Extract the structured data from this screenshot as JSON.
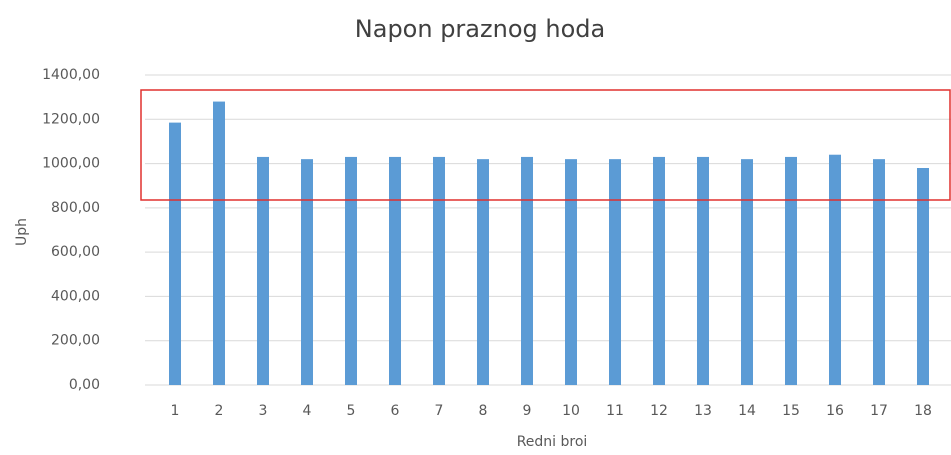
{
  "chart_data": {
    "type": "bar",
    "title": "Napon praznog hoda",
    "x_label": "Redni broi",
    "y_label": "Uph",
    "categories": [
      "1",
      "2",
      "3",
      "4",
      "5",
      "6",
      "7",
      "8",
      "9",
      "10",
      "11",
      "12",
      "13",
      "14",
      "15",
      "16",
      "17",
      "18"
    ],
    "values": [
      1185,
      1280,
      1030,
      1020,
      1030,
      1030,
      1030,
      1020,
      1030,
      1020,
      1020,
      1030,
      1030,
      1020,
      1030,
      1040,
      1020,
      980
    ],
    "color": "#5b9bd5",
    "ylim": [
      0,
      1400
    ],
    "yticks": [
      {
        "value": 0,
        "label": "0,00"
      },
      {
        "value": 200,
        "label": "200,00"
      },
      {
        "value": 400,
        "label": "400,00"
      },
      {
        "value": 600,
        "label": "600,00"
      },
      {
        "value": 800,
        "label": "800,00"
      },
      {
        "value": 1000,
        "label": "1000,00"
      },
      {
        "value": 1200,
        "label": "1200,00"
      },
      {
        "value": 1400,
        "label": "1400,00"
      }
    ],
    "grid": true
  }
}
